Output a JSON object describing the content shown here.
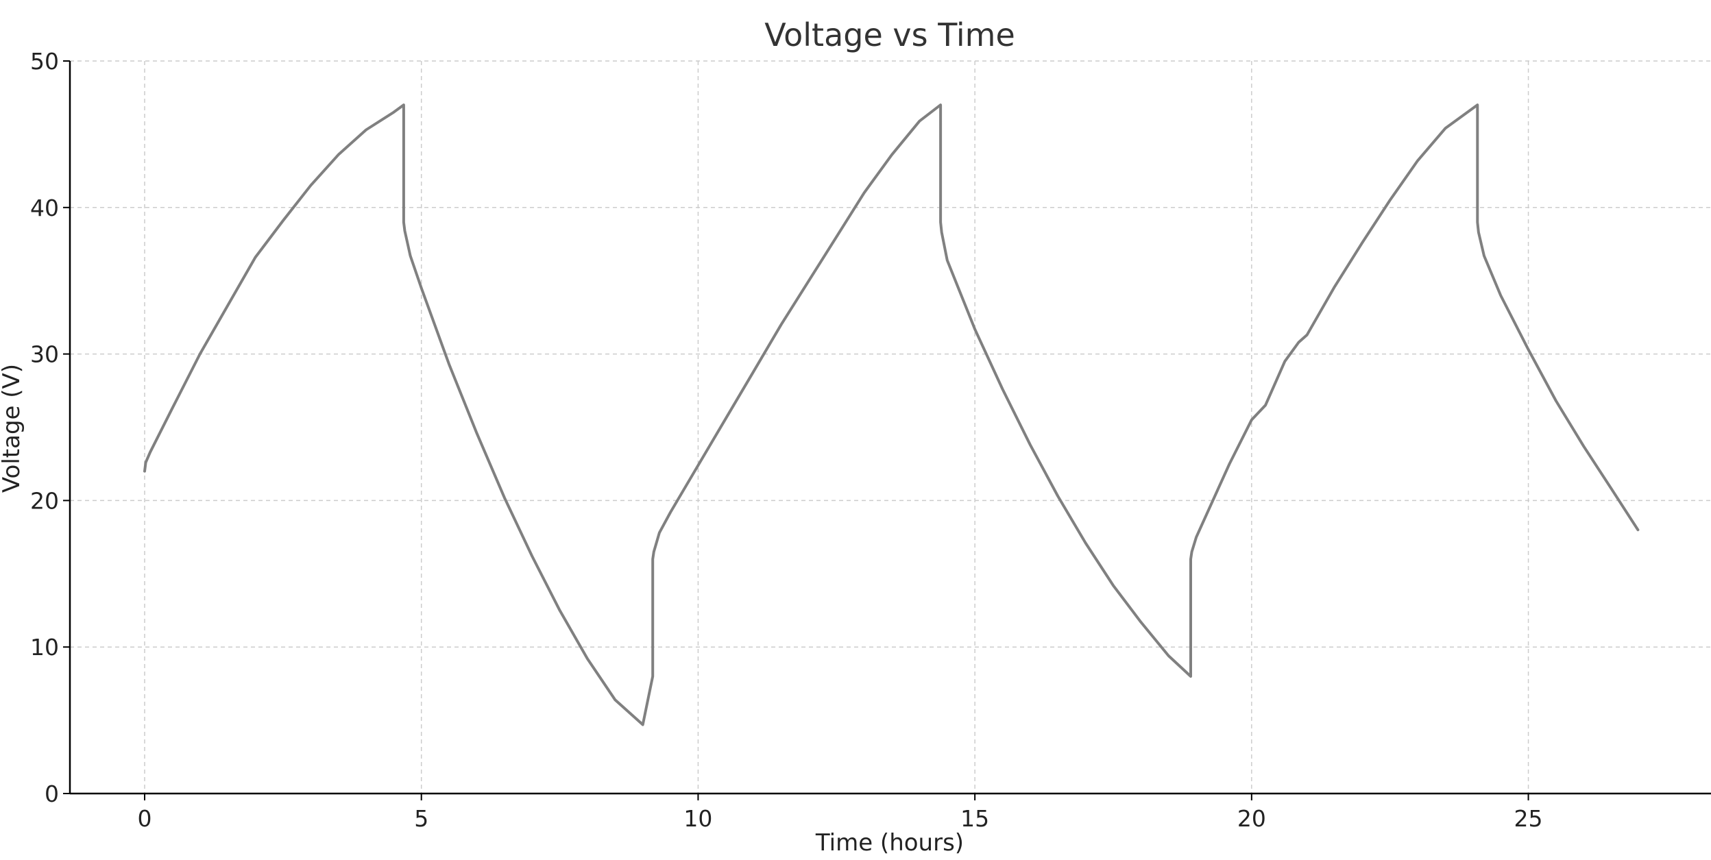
{
  "chart_data": {
    "type": "line",
    "title": "Voltage vs Time",
    "xlabel": "Time (hours)",
    "ylabel": "Voltage (V)",
    "xlim": [
      -1.35,
      28.3
    ],
    "ylim": [
      0,
      50
    ],
    "xticks": [
      0,
      5,
      10,
      15,
      20,
      25
    ],
    "yticks": [
      0,
      10,
      20,
      30,
      40,
      50
    ],
    "grid": true,
    "line_color": "#808080",
    "series": [
      {
        "x": [
          0,
          0.02,
          0.1,
          0.5,
          1.0,
          1.5,
          2.0,
          2.5,
          3.0,
          3.5,
          4.0,
          4.5,
          4.68,
          4.68,
          4.7,
          4.8,
          5.0,
          5.5,
          6.0,
          6.5,
          7.0,
          7.5,
          8.0,
          8.5,
          9.0,
          9.18,
          9.18,
          9.2,
          9.3,
          9.5,
          10.0,
          10.5,
          11.0,
          11.5,
          12.0,
          12.5,
          13.0,
          13.5,
          14.0,
          14.38,
          14.38,
          14.4,
          14.5,
          15.0,
          15.5,
          16.0,
          16.5,
          17.0,
          17.5,
          18.0,
          18.5,
          18.9,
          18.9,
          18.92,
          19.0,
          19.3,
          19.6,
          20.0,
          20.25,
          20.6,
          20.85,
          21.0,
          21.5,
          22.0,
          22.5,
          23.0,
          23.5,
          24.08,
          24.08,
          24.1,
          24.2,
          24.5,
          25.0,
          25.5,
          26.0,
          26.5,
          26.98
        ],
        "y": [
          22.0,
          22.6,
          23.3,
          26.3,
          30.0,
          33.3,
          36.6,
          39.1,
          41.5,
          43.6,
          45.3,
          46.5,
          47.0,
          39.0,
          38.4,
          36.7,
          34.5,
          29.3,
          24.6,
          20.2,
          16.2,
          12.5,
          9.2,
          6.4,
          4.7,
          8.0,
          16.0,
          16.5,
          17.8,
          19.2,
          22.4,
          25.6,
          28.8,
          32.0,
          35.0,
          38.0,
          41.0,
          43.6,
          45.9,
          47.0,
          39.0,
          38.3,
          36.4,
          31.7,
          27.6,
          23.8,
          20.3,
          17.1,
          14.2,
          11.7,
          9.4,
          8.0,
          16.0,
          16.5,
          17.5,
          20.0,
          22.5,
          25.5,
          26.5,
          29.5,
          30.8,
          31.3,
          34.6,
          37.6,
          40.5,
          43.2,
          45.4,
          47.0,
          39.0,
          38.3,
          36.7,
          34.0,
          30.3,
          26.8,
          23.7,
          20.8,
          18.0
        ]
      }
    ]
  }
}
